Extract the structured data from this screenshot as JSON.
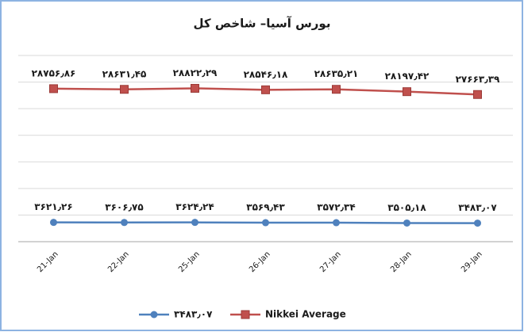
{
  "chart_data": {
    "type": "line",
    "title": "بورس آسیا– شاخص کل",
    "categories": [
      "21-Jan",
      "22-Jan",
      "25-Jan",
      "26-Jan",
      "27-Jan",
      "28-Jan",
      "29-Jan"
    ],
    "series": [
      {
        "name": "۳۴۸۳٫۰۷",
        "color": "#4f81bd",
        "values": [
          3621.26,
          3606.75,
          3624.24,
          3569.43,
          3572.34,
          3505.18,
          3483.07
        ],
        "value_labels": [
          "۳۶۲۱٫۲۶",
          "۳۶۰۶٫۷۵",
          "۳۶۲۴٫۲۴",
          "۳۵۶۹٫۴۳",
          "۳۵۷۲٫۳۴",
          "۳۵۰۵٫۱۸",
          "۳۴۸۳٫۰۷"
        ]
      },
      {
        "name": "Nikkei Average",
        "color": "#c0504d",
        "values": [
          28756.86,
          28631.45,
          28822.29,
          28546.18,
          28635.21,
          28197.42,
          27663.39
        ],
        "value_labels": [
          "۲۸۷۵۶٫۸۶",
          "۲۸۶۳۱٫۴۵",
          "۲۸۸۲۲٫۲۹",
          "۲۸۵۴۶٫۱۸",
          "۲۸۶۳۵٫۲۱",
          "۲۸۱۹۷٫۴۲",
          "۲۷۶۶۳٫۳۹"
        ]
      }
    ],
    "ylim": [
      0,
      35000
    ],
    "yticks": [
      0,
      5000,
      10000,
      15000,
      20000,
      25000,
      30000,
      35000
    ],
    "grid": true
  }
}
